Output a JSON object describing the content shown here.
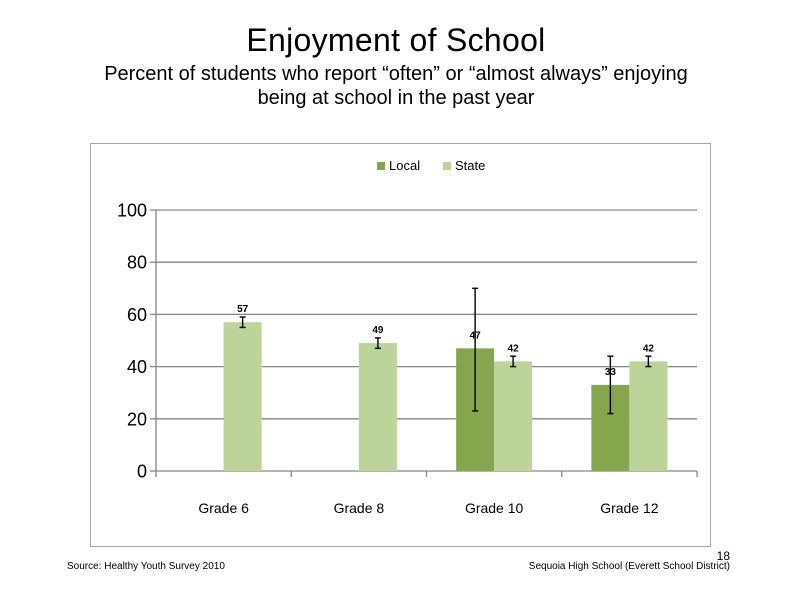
{
  "title": "Enjoyment of School",
  "subtitle_line1": "Percent of students who report “often” or “almost always” enjoying",
  "subtitle_line2": "being at school in the past year",
  "footer": {
    "source": "Source: Healthy Youth Survey 2010",
    "school": "Sequoia High School (Everett School District)",
    "slide_number": "18"
  },
  "colors": {
    "local": "#86a64e",
    "state": "#bcd39a",
    "gridline": "#868686",
    "frame": "#a6a6a6"
  },
  "chart_data": {
    "type": "bar",
    "title": "",
    "xlabel": "",
    "ylabel": "",
    "categories": [
      "Grade 6",
      "Grade 8",
      "Grade 10",
      "Grade 12"
    ],
    "ylim": [
      0,
      100
    ],
    "yticks": [
      0,
      20,
      40,
      60,
      80,
      100
    ],
    "grid": true,
    "legend_position": "top",
    "series": [
      {
        "name": "Local",
        "color": "#86a64e",
        "values": [
          null,
          null,
          47,
          33
        ],
        "labels": [
          "",
          "",
          "47",
          "33"
        ],
        "error_low": [
          null,
          null,
          23,
          22
        ],
        "error_high": [
          null,
          null,
          70,
          44
        ]
      },
      {
        "name": "State",
        "color": "#bcd39a",
        "values": [
          57,
          49,
          42,
          42
        ],
        "labels": [
          "57",
          "49",
          "42",
          "42"
        ],
        "error_low": [
          55,
          47,
          40,
          40
        ],
        "error_high": [
          59,
          51,
          44,
          44
        ]
      }
    ]
  }
}
